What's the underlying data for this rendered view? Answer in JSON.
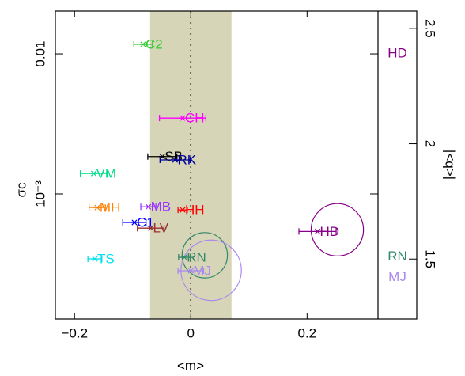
{
  "chart_data": {
    "type": "scatter",
    "xlabel": "<m>",
    "ylabel": "σc",
    "y2label": "|<q>|",
    "xlim": [
      -0.233,
      0.322
    ],
    "ylim": [
      0.000128,
      0.0202
    ],
    "y2lim": [
      1.24,
      2.575
    ],
    "log_y": true,
    "xticks": [
      {
        "value": -0.2,
        "label": "−0.2"
      },
      0,
      0.2
    ],
    "yticks": [
      {
        "value": 0.001,
        "label": "10⁻³"
      },
      0.01
    ],
    "y2ticks": [
      1.5,
      2,
      {
        "value": 2.5,
        "label": "2.5"
      }
    ],
    "band": [
      -0.07,
      0.07
    ],
    "band_color": "#d6d5b8",
    "vline": 0,
    "series": [
      {
        "name": "C2",
        "color": "#33cc33",
        "x": -0.082,
        "y": 0.0117,
        "xerr": 0.016
      },
      {
        "name": "CH",
        "color": "#ff00ff",
        "x": -0.014,
        "y": 0.00348,
        "xerr": 0.04
      },
      {
        "name": "SB",
        "color": "#000000",
        "x": -0.049,
        "y": 0.00185,
        "xerr": 0.025
      },
      {
        "name": "RK",
        "color": "#000099",
        "x": -0.027,
        "y": 0.00175,
        "xerr": 0.026
      },
      {
        "name": "VM",
        "color": "#00dd88",
        "x": -0.167,
        "y": 0.0014,
        "xerr": 0.023
      },
      {
        "name": "MH",
        "color": "#ff8000",
        "x": -0.161,
        "y": 0.0008,
        "xerr": 0.014
      },
      {
        "name": "MB",
        "color": "#9933ff",
        "x": -0.073,
        "y": 0.00081,
        "xerr": 0.013
      },
      {
        "name": "HH",
        "color": "#ff0000",
        "x": -0.014,
        "y": 0.00077,
        "xerr": 0.008
      },
      {
        "name": "C1",
        "color": "#0000ff",
        "x": -0.097,
        "y": 0.000626,
        "xerr": 0.02
      },
      {
        "name": "LV",
        "color": "#993333",
        "x": -0.069,
        "y": 0.00057,
        "xerr": 0.023
      },
      {
        "name": "HD",
        "color": "#880088",
        "x": 0.218,
        "y": 0.00054,
        "xerr": 0.032
      },
      {
        "name": "TS",
        "color": "#00e0ee",
        "x": -0.165,
        "y": 0.000344,
        "xerr": 0.012
      },
      {
        "name": "RN",
        "color": "#338866",
        "x": -0.011,
        "y": 0.000353,
        "xerr": 0.01
      },
      {
        "name": "MJ",
        "color": "#aa88ee",
        "x": 0,
        "y": 0.000283,
        "xerr": 0.022
      }
    ],
    "circles": [
      {
        "color": "#880088",
        "x": 0.252,
        "y": 0.000555,
        "size": 0.045
      },
      {
        "color": "#338866",
        "x": 0.024,
        "y": 0.000365,
        "size": 0.039
      },
      {
        "color": "#aa88ee",
        "x": 0.035,
        "y": 0.000285,
        "size": 0.052
      }
    ],
    "q_values": [
      {
        "name": "HD",
        "color": "#880088",
        "value": 2.39
      },
      {
        "name": "RN",
        "color": "#338866",
        "value": 1.51
      },
      {
        "name": "MJ",
        "color": "#aa88ee",
        "value": 1.42
      }
    ]
  }
}
